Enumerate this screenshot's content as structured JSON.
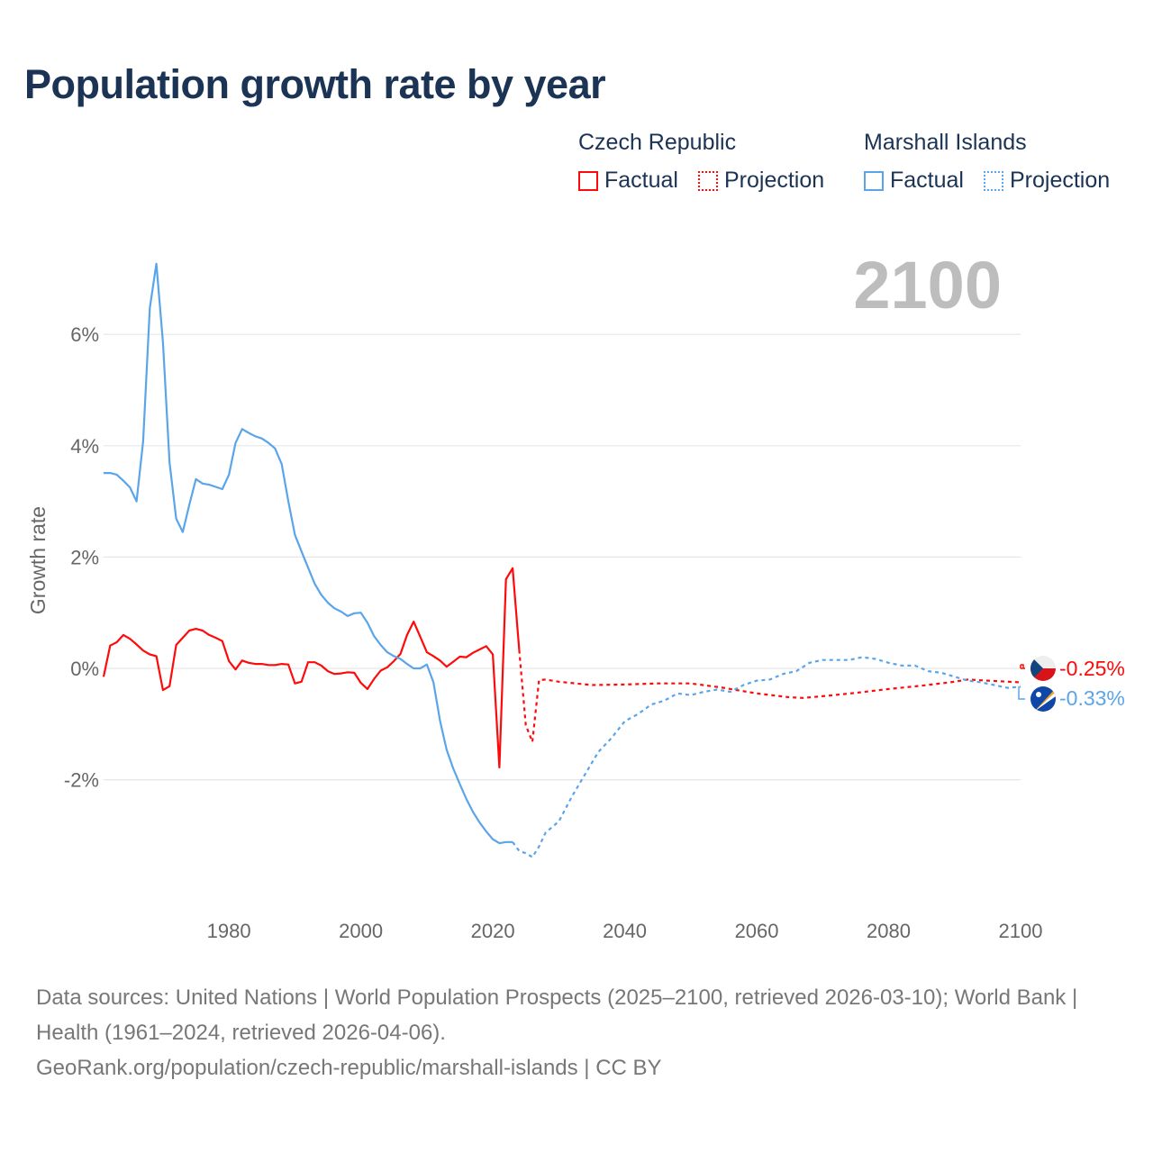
{
  "title": "Population growth rate by year",
  "legend": {
    "groups": [
      {
        "country": "Czech Republic",
        "factual": "Factual",
        "projection": "Projection",
        "color": "#ff0a0a"
      },
      {
        "country": "Marshall Islands",
        "factual": "Factual",
        "projection": "Projection",
        "color": "#5aa5ea"
      }
    ]
  },
  "year_display": "2100",
  "end_labels": [
    {
      "country": "Czech Republic",
      "flag_icon": "czech-flag-icon",
      "value": "-0.25%"
    },
    {
      "country": "Marshall Islands",
      "flag_icon": "marshall-islands-flag-icon",
      "value": "-0.33%"
    }
  ],
  "chart_data": {
    "type": "line",
    "title": "Population growth rate by year",
    "xlabel": "",
    "ylabel": "Growth rate",
    "xlim": [
      1961,
      2100
    ],
    "ylim": [
      -4,
      7.5
    ],
    "x_ticks": [
      1980,
      2000,
      2020,
      2040,
      2060,
      2080,
      2100
    ],
    "x_tick_labels": [
      "1980",
      "2000",
      "2020",
      "2040",
      "2060",
      "2080",
      "2100"
    ],
    "y_ticks": [
      6,
      4,
      2,
      0,
      -2
    ],
    "y_tick_labels": [
      "6%",
      "4%",
      "2%",
      "0%",
      "-2%"
    ],
    "grid": true,
    "legend_position": "top-right",
    "series": [
      {
        "name": "Czech Republic – Factual",
        "color": "#ff0a0a",
        "style": "solid",
        "x": [
          1961,
          1962,
          1963,
          1964,
          1965,
          1966,
          1967,
          1968,
          1969,
          1970,
          1971,
          1972,
          1973,
          1974,
          1975,
          1976,
          1977,
          1978,
          1979,
          1980,
          1981,
          1982,
          1983,
          1984,
          1985,
          1986,
          1987,
          1988,
          1989,
          1990,
          1991,
          1992,
          1993,
          1994,
          1995,
          1996,
          1997,
          1998,
          1999,
          2000,
          2001,
          2002,
          2003,
          2004,
          2005,
          2006,
          2007,
          2008,
          2009,
          2010,
          2011,
          2012,
          2013,
          2014,
          2015,
          2016,
          2017,
          2018,
          2019,
          2020,
          2021,
          2022,
          2023,
          2024
        ],
        "y": [
          -0.15,
          0.41,
          0.47,
          0.6,
          0.53,
          0.43,
          0.32,
          0.25,
          0.22,
          -0.39,
          -0.32,
          0.42,
          0.55,
          0.68,
          0.71,
          0.68,
          0.6,
          0.55,
          0.49,
          0.13,
          -0.02,
          0.14,
          0.1,
          0.08,
          0.08,
          0.06,
          0.06,
          0.08,
          0.07,
          -0.27,
          -0.24,
          0.11,
          0.11,
          0.05,
          -0.05,
          -0.1,
          -0.09,
          -0.07,
          -0.08,
          -0.26,
          -0.37,
          -0.19,
          -0.04,
          0.02,
          0.13,
          0.26,
          0.6,
          0.84,
          0.57,
          0.29,
          0.22,
          0.14,
          0.03,
          0.12,
          0.21,
          0.2,
          0.28,
          0.34,
          0.4,
          0.25,
          -1.78,
          1.6,
          1.8,
          0.33
        ]
      },
      {
        "name": "Czech Republic – Projection",
        "color": "#ff0a0a",
        "style": "dotted",
        "x": [
          2024,
          2025,
          2026,
          2027,
          2028,
          2030,
          2035,
          2040,
          2045,
          2050,
          2055,
          2060,
          2065,
          2067,
          2070,
          2075,
          2080,
          2085,
          2090,
          2092,
          2095,
          2100
        ],
        "y": [
          0.33,
          -1.02,
          -1.32,
          -0.21,
          -0.2,
          -0.24,
          -0.3,
          -0.29,
          -0.27,
          -0.27,
          -0.35,
          -0.45,
          -0.52,
          -0.53,
          -0.5,
          -0.44,
          -0.37,
          -0.31,
          -0.24,
          -0.2,
          -0.22,
          -0.25
        ]
      },
      {
        "name": "Marshall Islands – Factual",
        "color": "#5aa5ea",
        "style": "solid",
        "x": [
          1961,
          1962,
          1963,
          1964,
          1965,
          1966,
          1967,
          1968,
          1969,
          1970,
          1971,
          1972,
          1973,
          1974,
          1975,
          1976,
          1977,
          1978,
          1979,
          1980,
          1981,
          1982,
          1983,
          1984,
          1985,
          1986,
          1987,
          1988,
          1989,
          1990,
          1991,
          1992,
          1993,
          1994,
          1995,
          1996,
          1997,
          1998,
          1999,
          2000,
          2001,
          2002,
          2003,
          2004,
          2005,
          2006,
          2007,
          2008,
          2009,
          2010,
          2011,
          2012,
          2013,
          2014,
          2015,
          2016,
          2017,
          2018,
          2019,
          2020,
          2021,
          2022,
          2023
        ],
        "y": [
          3.51,
          3.51,
          3.48,
          3.37,
          3.25,
          3.0,
          4.08,
          6.47,
          7.27,
          5.86,
          3.7,
          2.69,
          2.45,
          2.94,
          3.4,
          3.32,
          3.3,
          3.26,
          3.22,
          3.48,
          4.05,
          4.3,
          4.23,
          4.17,
          4.13,
          4.05,
          3.95,
          3.67,
          3.0,
          2.4,
          2.1,
          1.81,
          1.52,
          1.32,
          1.18,
          1.08,
          1.02,
          0.94,
          0.99,
          1.0,
          0.82,
          0.58,
          0.42,
          0.29,
          0.22,
          0.17,
          0.08,
          0.0,
          0.0,
          0.07,
          -0.25,
          -0.94,
          -1.46,
          -1.8,
          -2.08,
          -2.35,
          -2.58,
          -2.77,
          -2.93,
          -3.07,
          -3.14,
          -3.12,
          -3.12
        ]
      },
      {
        "name": "Marshall Islands – Projection",
        "color": "#5aa5ea",
        "style": "dotted",
        "x": [
          2023,
          2024,
          2025,
          2026,
          2027,
          2028,
          2030,
          2032,
          2034,
          2036,
          2038,
          2040,
          2042,
          2044,
          2046,
          2048,
          2050,
          2052,
          2054,
          2056,
          2058,
          2060,
          2062,
          2064,
          2066,
          2068,
          2070,
          2072,
          2074,
          2076,
          2078,
          2080,
          2082,
          2084,
          2086,
          2088,
          2090,
          2092,
          2094,
          2096,
          2098,
          2100
        ],
        "y": [
          -3.12,
          -3.28,
          -3.32,
          -3.39,
          -3.2,
          -2.95,
          -2.75,
          -2.3,
          -1.9,
          -1.5,
          -1.25,
          -0.95,
          -0.82,
          -0.65,
          -0.58,
          -0.45,
          -0.48,
          -0.42,
          -0.38,
          -0.42,
          -0.3,
          -0.22,
          -0.2,
          -0.1,
          -0.05,
          0.1,
          0.15,
          0.15,
          0.15,
          0.2,
          0.17,
          0.1,
          0.05,
          0.05,
          -0.05,
          -0.08,
          -0.15,
          -0.22,
          -0.25,
          -0.3,
          -0.35,
          -0.33
        ]
      }
    ]
  },
  "source": {
    "line1": "Data sources: United Nations | World Population Prospects (2025–2100, retrieved 2026-03-10); World Bank | Health (1961–2024, retrieved 2026-04-06).",
    "line2": "GeoRank.org/population/czech-republic/marshall-islands | CC BY"
  }
}
